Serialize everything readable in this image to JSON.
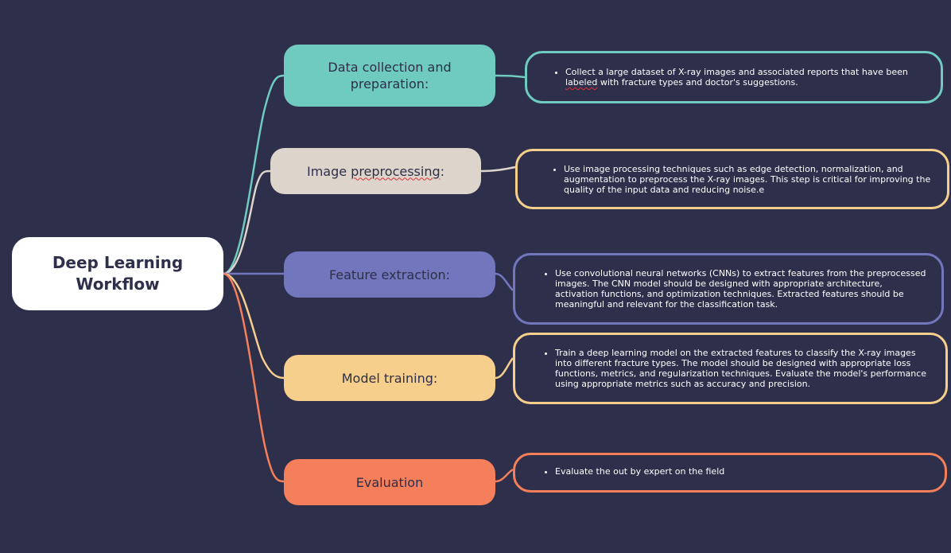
{
  "root": {
    "label": "Deep Learning Workflow"
  },
  "branches": [
    {
      "label_parts": [
        "Data collection and preparation:"
      ],
      "color": "#6fcabf",
      "detail_parts": [
        "Collect a large dataset of X-ray images and associated reports that have been ",
        "labeled",
        " with fracture types and doctor's suggestions."
      ]
    },
    {
      "label_parts": [
        "Image ",
        "preprocessing",
        ":"
      ],
      "color": "#ddd5cb",
      "detail_parts": [
        "Use image processing techniques such as edge detection, normalization, and augmentation to preprocess the X-ray images. This step is critical for improving the quality of the input data and reducing noise.e"
      ],
      "detail_border": "#f6cf8c"
    },
    {
      "label_parts": [
        "Feature extraction:"
      ],
      "color": "#7276bd",
      "detail_parts": [
        "Use convolutional neural networks (CNNs) to extract features from the preprocessed images. The CNN model should be designed with appropriate architecture, activation functions, and optimization techniques. Extracted features should be meaningful and relevant for the classification task."
      ]
    },
    {
      "label_parts": [
        "Model training:"
      ],
      "color": "#f6cf8c",
      "detail_parts": [
        "Train a deep learning model on the extracted features to classify the X-ray images into different fracture types. The model should be designed with appropriate loss functions, metrics, and regularization techniques. Evaluate the model's performance using appropriate metrics such as accuracy and precision."
      ]
    },
    {
      "label_parts": [
        "Evaluation"
      ],
      "color": "#f47f5a",
      "detail_parts": [
        "Evaluate the out by expert on the field"
      ]
    }
  ],
  "colors": {
    "background": "#2d2f4b",
    "root_fill": "#ffffff",
    "text_dark": "#2d2f4b",
    "text_light": "#ffffff"
  }
}
